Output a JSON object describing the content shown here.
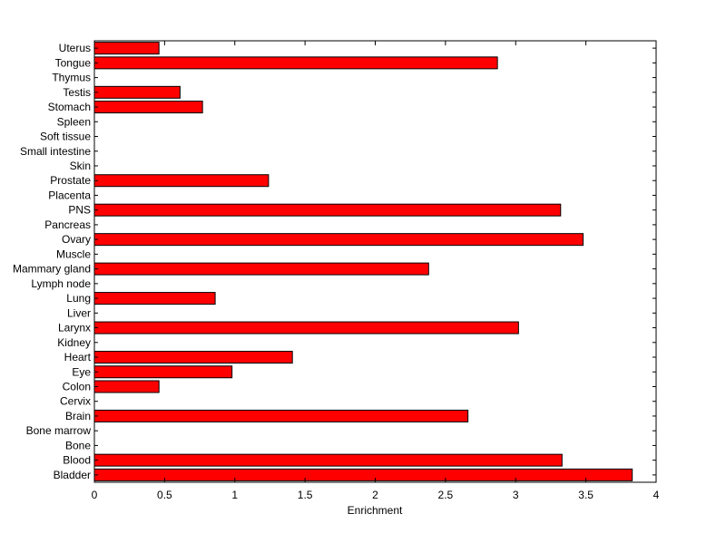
{
  "chart_data": {
    "type": "bar",
    "orientation": "horizontal",
    "title": "",
    "xlabel": "Enrichment",
    "ylabel": "",
    "xlim": [
      0,
      4
    ],
    "xticks": [
      "0",
      "0.5",
      "1",
      "1.5",
      "2",
      "2.5",
      "3",
      "3.5",
      "4"
    ],
    "grid": false,
    "legend": "none",
    "bar_color": "#ff0000",
    "bar_edge_color": "#000000",
    "categories": [
      "Bladder",
      "Blood",
      "Bone",
      "Bone marrow",
      "Brain",
      "Cervix",
      "Colon",
      "Eye",
      "Heart",
      "Kidney",
      "Larynx",
      "Liver",
      "Lung",
      "Lymph node",
      "Mammary gland",
      "Muscle",
      "Ovary",
      "Pancreas",
      "PNS",
      "Placenta",
      "Prostate",
      "Skin",
      "Small intestine",
      "Soft tissue",
      "Spleen",
      "Stomach",
      "Testis",
      "Thymus",
      "Tongue",
      "Uterus"
    ],
    "values": [
      3.83,
      3.33,
      0,
      0,
      2.66,
      0,
      0.46,
      0.98,
      1.41,
      0,
      3.02,
      0,
      0.86,
      0,
      2.38,
      0,
      3.48,
      0,
      3.32,
      0,
      1.24,
      0,
      0,
      0,
      0,
      0.77,
      0.61,
      0,
      2.87,
      0.46
    ]
  }
}
